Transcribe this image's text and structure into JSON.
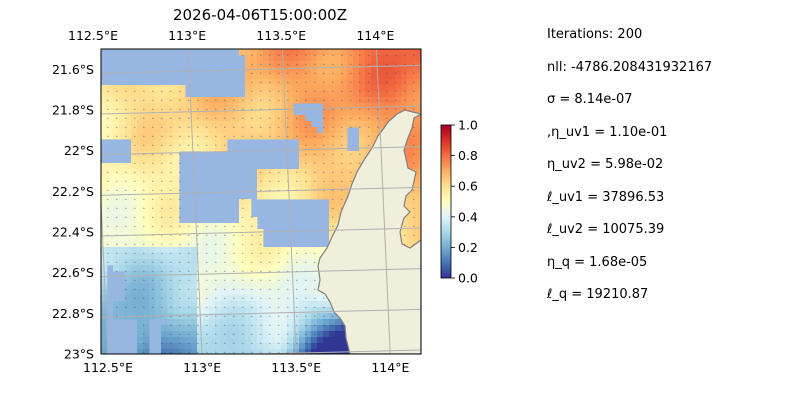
{
  "chart_data": {
    "type": "heatmap",
    "title": "2026-04-06T15:00:00Z",
    "x_ticks": [
      "112.5°E",
      "113°E",
      "113.5°E",
      "114°E"
    ],
    "x_tick_values": [
      112.5,
      113.0,
      113.5,
      114.0
    ],
    "y_ticks": [
      "21.6°S",
      "21.8°S",
      "22°S",
      "22.2°S",
      "22.4°S",
      "22.6°S",
      "22.8°S",
      "23°S"
    ],
    "y_tick_values": [
      -21.6,
      -21.8,
      -22.0,
      -22.2,
      -22.4,
      -22.6,
      -22.8,
      -23.0
    ],
    "xlim": [
      112.5,
      114.2
    ],
    "ylim": [
      -23.0,
      -21.5
    ],
    "colorbar": {
      "min": 0.0,
      "max": 1.0,
      "ticks": [
        "0.0",
        "0.2",
        "0.4",
        "0.6",
        "0.8",
        "1.0"
      ],
      "colormap": "RdYlBu_r"
    },
    "grid": true,
    "ocean_color": "#97b6e1",
    "land_color": "#efefdb",
    "coast_color": "#7f7f7f"
  },
  "parameters": [
    "Iterations: 200",
    "nll: -4786.208431932167",
    "σ = 8.14e-07",
    ",η_uv1 = 1.10e-01",
    "η_uv2 = 5.98e-02",
    "ℓ_uv1 = 37896.53",
    "ℓ_uv2 = 10075.39",
    "η_q = 1.68e-05",
    "ℓ_q = 19210.87"
  ]
}
